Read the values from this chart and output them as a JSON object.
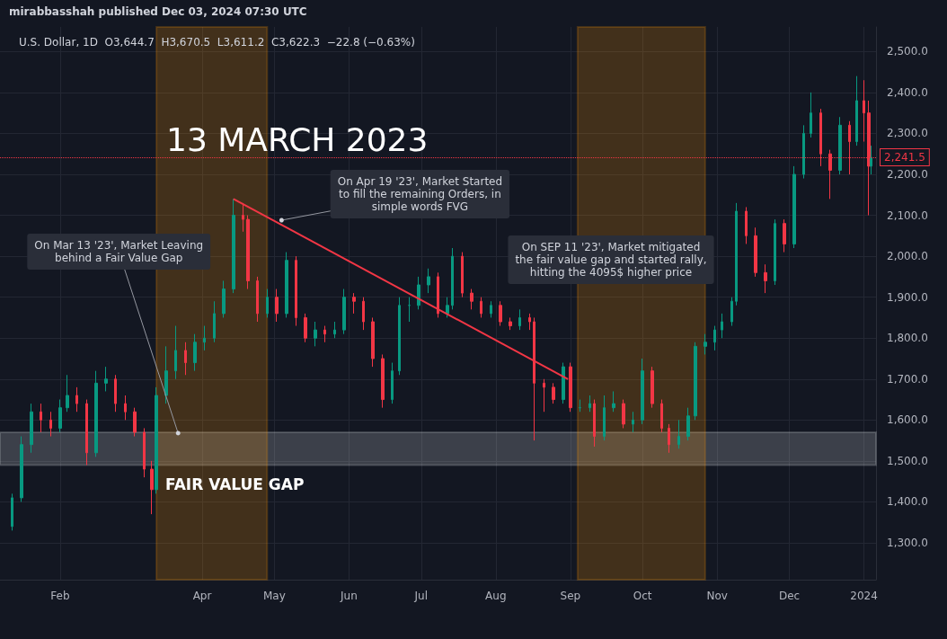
{
  "chart_data": {
    "type": "candlestick",
    "title": "13 MARCH 2023",
    "subtitle": "U.S. Dollar, 1D  O3,644.7  H3,670.5  L3,611.2  C3,622.3  −22.8 (−0.63%)",
    "x": [
      "2023-01-12",
      "2023-01-16",
      "2023-01-20",
      "2023-01-24",
      "2023-01-28",
      "2023-02-01",
      "2023-02-04",
      "2023-02-08",
      "2023-02-12",
      "2023-02-16",
      "2023-02-20",
      "2023-02-24",
      "2023-02-28",
      "2023-03-04",
      "2023-03-08",
      "2023-03-11",
      "2023-03-13",
      "2023-03-17",
      "2023-03-21",
      "2023-03-25",
      "2023-03-29",
      "2023-04-02",
      "2023-04-06",
      "2023-04-10",
      "2023-04-14",
      "2023-04-18",
      "2023-04-20",
      "2023-04-24",
      "2023-04-28",
      "2023-05-02",
      "2023-05-06",
      "2023-05-10",
      "2023-05-14",
      "2023-05-18",
      "2023-05-22",
      "2023-05-26",
      "2023-05-30",
      "2023-06-03",
      "2023-06-07",
      "2023-06-11",
      "2023-06-15",
      "2023-06-19",
      "2023-06-22",
      "2023-06-26",
      "2023-06-30",
      "2023-07-04",
      "2023-07-08",
      "2023-07-12",
      "2023-07-14",
      "2023-07-18",
      "2023-07-22",
      "2023-07-26",
      "2023-07-30",
      "2023-08-03",
      "2023-08-07",
      "2023-08-11",
      "2023-08-15",
      "2023-08-17",
      "2023-08-21",
      "2023-08-25",
      "2023-08-29",
      "2023-09-01",
      "2023-09-05",
      "2023-09-09",
      "2023-09-11",
      "2023-09-15",
      "2023-09-19",
      "2023-09-23",
      "2023-09-27",
      "2023-10-01",
      "2023-10-05",
      "2023-10-09",
      "2023-10-12",
      "2023-10-16",
      "2023-10-20",
      "2023-10-23",
      "2023-10-27",
      "2023-10-31",
      "2023-11-03",
      "2023-11-07",
      "2023-11-09",
      "2023-11-13",
      "2023-11-17",
      "2023-11-21",
      "2023-11-25",
      "2023-11-29",
      "2023-12-03",
      "2023-12-07",
      "2023-12-10",
      "2023-12-14",
      "2023-12-18",
      "2023-12-22",
      "2023-12-26",
      "2023-12-29",
      "2024-01-01",
      "2024-01-03",
      "2024-01-04"
    ],
    "ohlc": [
      [
        1340,
        1420,
        1330,
        1410
      ],
      [
        1410,
        1560,
        1400,
        1540
      ],
      [
        1540,
        1640,
        1520,
        1620
      ],
      [
        1620,
        1640,
        1570,
        1600
      ],
      [
        1600,
        1620,
        1560,
        1580
      ],
      [
        1580,
        1650,
        1570,
        1630
      ],
      [
        1630,
        1710,
        1620,
        1660
      ],
      [
        1660,
        1680,
        1620,
        1640
      ],
      [
        1640,
        1650,
        1490,
        1520
      ],
      [
        1520,
        1720,
        1510,
        1690
      ],
      [
        1690,
        1730,
        1670,
        1700
      ],
      [
        1700,
        1710,
        1620,
        1640
      ],
      [
        1640,
        1660,
        1600,
        1620
      ],
      [
        1620,
        1630,
        1560,
        1570
      ],
      [
        1570,
        1580,
        1460,
        1480
      ],
      [
        1480,
        1500,
        1370,
        1430
      ],
      [
        1430,
        1680,
        1420,
        1660
      ],
      [
        1660,
        1780,
        1640,
        1720
      ],
      [
        1720,
        1830,
        1700,
        1770
      ],
      [
        1770,
        1790,
        1710,
        1740
      ],
      [
        1740,
        1810,
        1720,
        1790
      ],
      [
        1790,
        1830,
        1770,
        1800
      ],
      [
        1800,
        1890,
        1790,
        1860
      ],
      [
        1860,
        1940,
        1850,
        1920
      ],
      [
        1920,
        2140,
        1910,
        2100
      ],
      [
        2100,
        2130,
        2060,
        2090
      ],
      [
        2090,
        2100,
        1920,
        1940
      ],
      [
        1940,
        1950,
        1840,
        1860
      ],
      [
        1860,
        1920,
        1850,
        1900
      ],
      [
        1900,
        1920,
        1840,
        1860
      ],
      [
        1860,
        2010,
        1850,
        1990
      ],
      [
        1990,
        2000,
        1830,
        1850
      ],
      [
        1850,
        1860,
        1790,
        1800
      ],
      [
        1800,
        1840,
        1780,
        1820
      ],
      [
        1820,
        1830,
        1790,
        1810
      ],
      [
        1810,
        1840,
        1800,
        1820
      ],
      [
        1820,
        1920,
        1810,
        1900
      ],
      [
        1900,
        1910,
        1860,
        1890
      ],
      [
        1890,
        1900,
        1820,
        1840
      ],
      [
        1840,
        1850,
        1730,
        1750
      ],
      [
        1750,
        1760,
        1630,
        1650
      ],
      [
        1650,
        1740,
        1640,
        1720
      ],
      [
        1720,
        1900,
        1710,
        1880
      ],
      [
        1880,
        1900,
        1840,
        1880
      ],
      [
        1880,
        1950,
        1870,
        1930
      ],
      [
        1930,
        1970,
        1910,
        1950
      ],
      [
        1950,
        1960,
        1850,
        1860
      ],
      [
        1860,
        1900,
        1850,
        1880
      ],
      [
        1880,
        2020,
        1870,
        2000
      ],
      [
        2000,
        2010,
        1900,
        1910
      ],
      [
        1910,
        1920,
        1870,
        1890
      ],
      [
        1890,
        1900,
        1850,
        1860
      ],
      [
        1860,
        1890,
        1850,
        1880
      ],
      [
        1880,
        1890,
        1830,
        1840
      ],
      [
        1840,
        1850,
        1820,
        1830
      ],
      [
        1830,
        1870,
        1820,
        1850
      ],
      [
        1850,
        1860,
        1820,
        1840
      ],
      [
        1840,
        1850,
        1550,
        1690
      ],
      [
        1690,
        1700,
        1620,
        1680
      ],
      [
        1680,
        1690,
        1640,
        1650
      ],
      [
        1650,
        1740,
        1640,
        1730
      ],
      [
        1730,
        1740,
        1620,
        1630
      ],
      [
        1630,
        1650,
        1620,
        1630
      ],
      [
        1630,
        1660,
        1620,
        1640
      ],
      [
        1640,
        1650,
        1535,
        1560
      ],
      [
        1560,
        1660,
        1550,
        1630
      ],
      [
        1630,
        1670,
        1620,
        1640
      ],
      [
        1640,
        1650,
        1580,
        1590
      ],
      [
        1590,
        1620,
        1570,
        1600
      ],
      [
        1600,
        1750,
        1590,
        1720
      ],
      [
        1720,
        1730,
        1630,
        1640
      ],
      [
        1640,
        1650,
        1570,
        1580
      ],
      [
        1580,
        1590,
        1520,
        1540
      ],
      [
        1540,
        1600,
        1530,
        1560
      ],
      [
        1560,
        1630,
        1550,
        1610
      ],
      [
        1610,
        1790,
        1600,
        1780
      ],
      [
        1780,
        1810,
        1760,
        1790
      ],
      [
        1790,
        1830,
        1770,
        1820
      ],
      [
        1820,
        1860,
        1800,
        1840
      ],
      [
        1840,
        1900,
        1830,
        1890
      ],
      [
        1890,
        2130,
        1880,
        2110
      ],
      [
        2110,
        2120,
        2030,
        2050
      ],
      [
        2050,
        2070,
        1950,
        1960
      ],
      [
        1960,
        1980,
        1910,
        1940
      ],
      [
        1940,
        2090,
        1930,
        2080
      ],
      [
        2080,
        2090,
        2010,
        2030
      ],
      [
        2030,
        2220,
        2020,
        2200
      ],
      [
        2200,
        2320,
        2190,
        2300
      ],
      [
        2300,
        2400,
        2290,
        2350
      ],
      [
        2350,
        2360,
        2220,
        2250
      ],
      [
        2250,
        2260,
        2140,
        2210
      ],
      [
        2210,
        2340,
        2200,
        2320
      ],
      [
        2320,
        2330,
        2200,
        2280
      ],
      [
        2280,
        2440,
        2270,
        2380
      ],
      [
        2380,
        2430,
        2280,
        2350
      ],
      [
        2350,
        2380,
        2100,
        2220
      ],
      [
        2220,
        2270,
        2200,
        2241.5
      ]
    ],
    "series": [
      {
        "type": "line",
        "color": "#f23645",
        "x": [
          "2023-04-14",
          "2023-08-31"
        ],
        "values": [
          2140,
          1700
        ]
      }
    ],
    "xlim": [
      "2023-01-07",
      "2024-01-06"
    ],
    "xticks": [
      {
        "value": "2023-02-01",
        "label": "Feb"
      },
      {
        "value": "2023-04-01",
        "label": "Apr"
      },
      {
        "value": "2023-05-01",
        "label": "May"
      },
      {
        "value": "2023-06-01",
        "label": "Jun"
      },
      {
        "value": "2023-07-01",
        "label": "Jul"
      },
      {
        "value": "2023-08-01",
        "label": "Aug"
      },
      {
        "value": "2023-09-01",
        "label": "Sep"
      },
      {
        "value": "2023-10-01",
        "label": "Oct"
      },
      {
        "value": "2023-11-01",
        "label": "Nov"
      },
      {
        "value": "2023-12-01",
        "label": "Dec"
      },
      {
        "value": "2024-01-01",
        "label": "2024"
      }
    ],
    "ylim": [
      1210,
      2560
    ],
    "yticks": [
      {
        "value": 1300,
        "label": "1,300.0"
      },
      {
        "value": 1400,
        "label": "1,400.0"
      },
      {
        "value": 1500,
        "label": "1,500.0"
      },
      {
        "value": 1600,
        "label": "1,600.0"
      },
      {
        "value": 1700,
        "label": "1,700.0"
      },
      {
        "value": 1800,
        "label": "1,800.0"
      },
      {
        "value": 1900,
        "label": "1,900.0"
      },
      {
        "value": 2000,
        "label": "2,000.0"
      },
      {
        "value": 2100,
        "label": "2,100.0"
      },
      {
        "value": 2200,
        "label": "2,200.0"
      },
      {
        "value": 2300,
        "label": "2,300.0"
      },
      {
        "value": 2400,
        "label": "2,400.0"
      },
      {
        "value": 2500,
        "label": "2,500.0"
      }
    ],
    "ref_lines": [
      {
        "axis": "y",
        "value": 2241.5,
        "label": "2,241.5",
        "color": "#f23645",
        "line_style": "dotted"
      }
    ],
    "bands": [
      {
        "axis": "y",
        "from": 1490,
        "to": 1570,
        "label": "FAIR VALUE GAP",
        "color": "#d1d4dc"
      },
      {
        "axis": "x",
        "from": "2023-03-13",
        "to": "2023-04-28",
        "color": "#ff9800"
      },
      {
        "axis": "x",
        "from": "2023-09-04",
        "to": "2023-10-27",
        "color": "#ff9800"
      }
    ],
    "annotations": [
      "mirabbasshah published Dec 03, 2024 07:30 UTC",
      {
        "text": "On Mar 13 '23', Market Leaving\nbehind a Fair Value Gap",
        "x": "2023-03-22",
        "y": 1568
      },
      {
        "text": "On Apr 19 '23', Market Started\nto fill the remaining Orders, in\nsimple words FVG",
        "x": "2023-05-04",
        "y": 2088
      },
      "On SEP 11 '23', Market mitigated\nthe fair value gap and started rally,\nhitting the 4095$ higher price"
    ],
    "grid": true
  }
}
